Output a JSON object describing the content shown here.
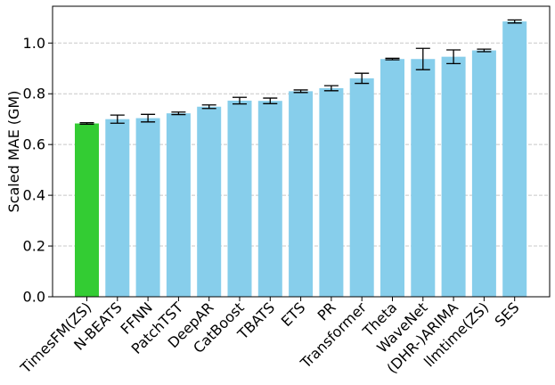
{
  "chart_data": {
    "type": "bar",
    "title": "",
    "xlabel": "",
    "ylabel": "Scaled MAE (GM)",
    "ylim": [
      0,
      1.145
    ],
    "yticks": [
      "0.0",
      "0.2",
      "0.4",
      "0.6",
      "0.8",
      "1.0"
    ],
    "grid": "horizontal dashed",
    "categories": [
      "TimesFM(ZS)",
      "N-BEATS",
      "FFNN",
      "PatchTST",
      "DeepAR",
      "CatBoost",
      "TBATS",
      "ETS",
      "PR",
      "Transformer",
      "Theta",
      "WaveNet",
      "(DHR-)ARIMA",
      "llmtime(ZS)",
      "SES"
    ],
    "values": [
      0.683,
      0.7,
      0.704,
      0.723,
      0.749,
      0.773,
      0.772,
      0.81,
      0.822,
      0.861,
      0.937,
      0.937,
      0.946,
      0.971,
      1.085
    ],
    "errors": [
      0.003,
      0.016,
      0.015,
      0.005,
      0.007,
      0.013,
      0.011,
      0.005,
      0.01,
      0.02,
      0.003,
      0.042,
      0.027,
      0.005,
      0.006
    ],
    "colors": {
      "highlight": "#33cc33",
      "default": "#87ceeb",
      "error_bar": "#000000",
      "grid": "#c8c8c8"
    },
    "highlight_index": 0
  }
}
